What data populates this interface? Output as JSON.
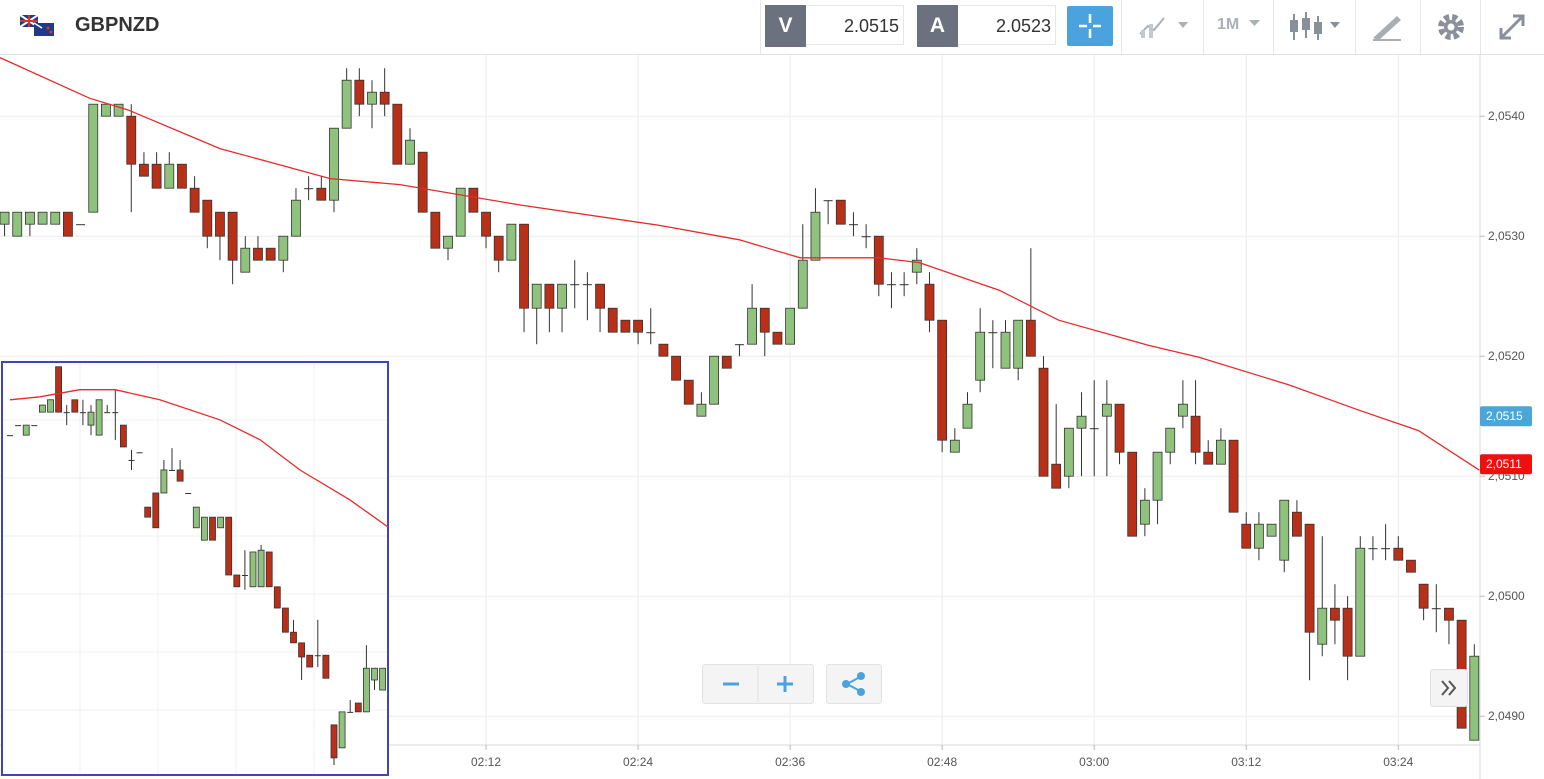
{
  "header": {
    "symbol": "GBPNZD",
    "sell": {
      "label": "V",
      "price": "2.0515"
    },
    "buy": {
      "label": "A",
      "price": "2.0523"
    },
    "timeframe": "1M"
  },
  "chart_data": [
    {
      "type": "candlestick",
      "up_color": "#8fc27c",
      "down_color": "#b93019",
      "grid": true,
      "xlim": [
        93.64,
        210.45
      ],
      "xticks": [
        {
          "value": 132,
          "label": "02:12"
        },
        {
          "value": 144,
          "label": "02:24"
        },
        {
          "value": 156,
          "label": "02:36"
        },
        {
          "value": 168,
          "label": "02:48"
        },
        {
          "value": 180,
          "label": "03:00"
        },
        {
          "value": 192,
          "label": "03:12"
        },
        {
          "value": 204,
          "label": "03:24"
        }
      ],
      "ylim": [
        2.04876,
        2.05451
      ],
      "yticks": [
        {
          "value": 2.049,
          "label": "2,0490"
        },
        {
          "value": 2.05,
          "label": "2,0500"
        },
        {
          "value": 2.051,
          "label": "2,0510"
        },
        {
          "value": 2.052,
          "label": "2,0520"
        },
        {
          "value": 2.053,
          "label": "2,0530"
        },
        {
          "value": 2.054,
          "label": "2,0540"
        }
      ],
      "x": [
        94,
        95,
        96,
        97,
        98,
        99,
        100,
        101,
        102,
        103,
        104,
        105,
        106,
        107,
        108,
        109,
        110,
        111,
        112,
        113,
        114,
        115,
        116,
        117,
        118,
        119,
        120,
        121,
        122,
        123,
        124,
        125,
        126,
        127,
        128,
        129,
        130,
        131,
        132,
        133,
        134,
        135,
        136,
        137,
        138,
        139,
        140,
        141,
        142,
        143,
        144,
        145,
        146,
        147,
        148,
        149,
        150,
        151,
        152,
        153,
        154,
        155,
        156,
        157,
        158,
        159,
        160,
        161,
        162,
        163,
        164,
        165,
        166,
        167,
        168,
        169,
        170,
        171,
        172,
        173,
        174,
        175,
        176,
        177,
        178,
        179,
        180,
        181,
        182,
        183,
        184,
        185,
        186,
        187,
        188,
        189,
        190,
        191,
        192,
        193,
        194,
        195,
        196,
        197,
        198,
        199,
        200,
        201,
        202,
        203,
        204,
        205,
        206,
        207,
        208,
        209,
        210
      ],
      "open": [
        2.0531,
        2.053,
        2.0531,
        2.0531,
        2.0531,
        2.0532,
        2.0531,
        2.0532,
        2.054,
        2.054,
        2.054,
        2.0536,
        2.0536,
        2.0534,
        2.0536,
        2.0534,
        2.0533,
        2.0532,
        2.0532,
        2.0527,
        2.0529,
        2.0529,
        2.0528,
        2.053,
        2.0534,
        2.0534,
        2.0533,
        2.0539,
        2.0543,
        2.0541,
        2.0542,
        2.0541,
        2.0536,
        2.0537,
        2.0532,
        2.0529,
        2.053,
        2.0534,
        2.0532,
        2.053,
        2.0528,
        2.0531,
        2.0524,
        2.0526,
        2.0524,
        2.0526,
        2.0526,
        2.0526,
        2.0524,
        2.0523,
        2.0523,
        2.0522,
        2.0521,
        2.052,
        2.0518,
        2.0515,
        2.0516,
        2.052,
        2.0521,
        2.0521,
        2.0524,
        2.0522,
        2.0521,
        2.0524,
        2.0528,
        2.0533,
        2.0533,
        2.0531,
        2.053,
        2.053,
        2.0526,
        2.0526,
        2.0527,
        2.0526,
        2.0523,
        2.0512,
        2.0514,
        2.0518,
        2.0522,
        2.0519,
        2.0519,
        2.0523,
        2.0519,
        2.0511,
        2.051,
        2.0514,
        2.0514,
        2.0515,
        2.0516,
        2.0512,
        2.0506,
        2.0508,
        2.0512,
        2.0515,
        2.0515,
        2.0512,
        2.0511,
        2.0513,
        2.0506,
        2.0504,
        2.0505,
        2.0503,
        2.0507,
        2.0506,
        2.0496,
        2.0499,
        2.0499,
        2.0495,
        2.0504,
        2.0504,
        2.0504,
        2.0503,
        2.0501,
        2.0499,
        2.0499,
        2.0498,
        2.0488
      ],
      "high": [
        2.0532,
        2.0532,
        2.0532,
        2.0532,
        2.0532,
        2.0532,
        2.0531,
        2.0541,
        2.0541,
        2.0541,
        2.0541,
        2.0537,
        2.0537,
        2.0537,
        2.0536,
        2.0535,
        2.0533,
        2.0532,
        2.0532,
        2.053,
        2.053,
        2.0529,
        2.053,
        2.0534,
        2.0535,
        2.0535,
        2.0539,
        2.0544,
        2.0544,
        2.0543,
        2.0544,
        2.0541,
        2.0539,
        2.0537,
        2.0532,
        2.053,
        2.0534,
        2.0534,
        2.0532,
        2.053,
        2.0531,
        2.0531,
        2.0526,
        2.0526,
        2.0526,
        2.0528,
        2.0527,
        2.0526,
        2.0524,
        2.0523,
        2.0523,
        2.0524,
        2.0521,
        2.052,
        2.0518,
        2.0517,
        2.052,
        2.052,
        2.0521,
        2.0526,
        2.0524,
        2.0522,
        2.0524,
        2.0531,
        2.0534,
        2.0533,
        2.0533,
        2.0532,
        2.0531,
        2.053,
        2.0527,
        2.0527,
        2.0529,
        2.0527,
        2.0523,
        2.0514,
        2.0517,
        2.0524,
        2.0523,
        2.0523,
        2.0523,
        2.0529,
        2.052,
        2.0516,
        2.0514,
        2.0517,
        2.0518,
        2.0518,
        2.0516,
        2.0512,
        2.0509,
        2.0512,
        2.0514,
        2.0518,
        2.0518,
        2.0513,
        2.0514,
        2.0513,
        2.0507,
        2.0507,
        2.0506,
        2.0508,
        2.0508,
        2.0506,
        2.0505,
        2.0501,
        2.05,
        2.0505,
        2.0505,
        2.0506,
        2.0505,
        2.0503,
        2.0501,
        2.0501,
        2.0499,
        2.0498,
        2.0496
      ],
      "low": [
        2.053,
        2.053,
        2.053,
        2.0531,
        2.0531,
        2.053,
        2.0531,
        2.0532,
        2.054,
        2.054,
        2.0532,
        2.0535,
        2.0534,
        2.0534,
        2.0534,
        2.0532,
        2.0529,
        2.0528,
        2.0526,
        2.0527,
        2.0528,
        2.0528,
        2.0527,
        2.053,
        2.0533,
        2.0533,
        2.0532,
        2.0539,
        2.054,
        2.0539,
        2.054,
        2.0536,
        2.0536,
        2.0532,
        2.0529,
        2.0528,
        2.053,
        2.0532,
        2.0529,
        2.0527,
        2.0528,
        2.0522,
        2.0521,
        2.0522,
        2.0522,
        2.0524,
        2.0523,
        2.0522,
        2.0522,
        2.0522,
        2.0521,
        2.0521,
        2.052,
        2.0518,
        2.0516,
        2.0515,
        2.0516,
        2.0519,
        2.052,
        2.0521,
        2.052,
        2.0521,
        2.0521,
        2.0524,
        2.0528,
        2.0531,
        2.0531,
        2.053,
        2.0529,
        2.0525,
        2.0524,
        2.0525,
        2.0526,
        2.0522,
        2.0512,
        2.0512,
        2.0514,
        2.0517,
        2.0519,
        2.0519,
        2.0518,
        2.052,
        2.051,
        2.0509,
        2.0509,
        2.051,
        2.051,
        2.051,
        2.0511,
        2.0505,
        2.0505,
        2.0506,
        2.0511,
        2.0514,
        2.0511,
        2.0511,
        2.0511,
        2.0507,
        2.0504,
        2.0503,
        2.0505,
        2.0502,
        2.0505,
        2.0493,
        2.0495,
        2.0496,
        2.0493,
        2.0495,
        2.0503,
        2.0503,
        2.0503,
        2.0502,
        2.0498,
        2.0497,
        2.0496,
        2.0489,
        2.0488
      ],
      "close": [
        2.0532,
        2.0532,
        2.0532,
        2.0532,
        2.0532,
        2.053,
        2.0531,
        2.0541,
        2.0541,
        2.0541,
        2.0536,
        2.0535,
        2.0534,
        2.0536,
        2.0534,
        2.0532,
        2.053,
        2.053,
        2.0528,
        2.0529,
        2.0528,
        2.0528,
        2.053,
        2.0533,
        2.0534,
        2.0533,
        2.0539,
        2.0543,
        2.0541,
        2.0542,
        2.0541,
        2.0536,
        2.0538,
        2.0532,
        2.0529,
        2.053,
        2.0534,
        2.0532,
        2.053,
        2.0528,
        2.0531,
        2.0524,
        2.0526,
        2.0524,
        2.0526,
        2.0526,
        2.0526,
        2.0524,
        2.0522,
        2.0522,
        2.0522,
        2.0522,
        2.052,
        2.0518,
        2.0516,
        2.0516,
        2.052,
        2.0519,
        2.0521,
        2.0524,
        2.0522,
        2.0521,
        2.0524,
        2.0528,
        2.0532,
        2.0533,
        2.0531,
        2.0531,
        2.053,
        2.0526,
        2.0526,
        2.0526,
        2.0528,
        2.0523,
        2.0513,
        2.0513,
        2.0516,
        2.0522,
        2.0522,
        2.0522,
        2.0523,
        2.052,
        2.051,
        2.0509,
        2.0514,
        2.0515,
        2.0514,
        2.0516,
        2.0512,
        2.0505,
        2.0508,
        2.0512,
        2.0514,
        2.0516,
        2.0512,
        2.0511,
        2.0513,
        2.0507,
        2.0504,
        2.0506,
        2.0506,
        2.0508,
        2.0505,
        2.0497,
        2.0499,
        2.0498,
        2.0495,
        2.0504,
        2.0504,
        2.0504,
        2.0503,
        2.0502,
        2.0499,
        2.0499,
        2.0498,
        2.0489,
        2.0495
      ],
      "moving_average": {
        "color": "#e8292b",
        "x": [
          93.6,
          100.7,
          103.8,
          111,
          119.7,
          125.2,
          134.7,
          145.7,
          152,
          156.8,
          163,
          166.2,
          172.5,
          177.2,
          184.3,
          188.3,
          195.4,
          200.9,
          205.6,
          210.4
        ],
        "values": [
          2.05449,
          2.05415,
          2.05405,
          2.05373,
          2.05348,
          2.05343,
          2.05326,
          2.05309,
          2.05297,
          2.05282,
          2.05282,
          2.05278,
          2.05255,
          2.0523,
          2.05209,
          2.05199,
          2.05176,
          2.05155,
          2.05138,
          2.05105
        ]
      },
      "price_tags": [
        {
          "value": 2.0515,
          "label": "2,0515",
          "color": "#4aa6d9"
        },
        {
          "value": 2.0511,
          "label": "2,0511",
          "color": "#f00f0f"
        }
      ]
    },
    {
      "type": "candlestick",
      "up_color": "#8fc27c",
      "down_color": "#b93019",
      "border_color": "#4045b8",
      "ylim": [
        2.0475,
        2.0545
      ],
      "open": [
        2.05326,
        2.05343,
        2.05326,
        2.05343,
        2.05365,
        2.05365,
        2.05442,
        2.05365,
        2.05386,
        2.05365,
        2.05343,
        2.05326,
        2.05365,
        2.05365,
        2.05343,
        2.05284,
        2.05297,
        2.05204,
        2.05228,
        2.05228,
        2.05267,
        2.05267,
        2.05228,
        2.05169,
        2.05148,
        2.05187,
        2.05169,
        2.05187,
        2.05089,
        2.05089,
        2.05069,
        2.05069,
        2.05128,
        2.05069,
        2.05033,
        2.04992,
        2.04974,
        2.04953,
        2.04953,
        2.04953,
        2.04835,
        2.04796,
        2.04857,
        2.04872,
        2.04857,
        2.04911,
        2.04894
      ],
      "high": [
        2.05326,
        2.05343,
        2.05343,
        2.05343,
        2.05377,
        2.05386,
        2.05442,
        2.05377,
        2.05386,
        2.05386,
        2.05377,
        2.05386,
        2.05377,
        2.05403,
        2.05343,
        2.05301,
        2.05297,
        2.05204,
        2.05228,
        2.05284,
        2.05304,
        2.05284,
        2.05228,
        2.05204,
        2.05187,
        2.05187,
        2.05187,
        2.05187,
        2.05089,
        2.05131,
        2.05128,
        2.0514,
        2.05128,
        2.05069,
        2.05033,
        2.05013,
        2.04974,
        2.04953,
        2.05013,
        2.04953,
        2.04835,
        2.04857,
        2.04877,
        2.04872,
        2.0497,
        2.04931,
        2.04931
      ],
      "low": [
        2.05326,
        2.05343,
        2.05326,
        2.05343,
        2.05365,
        2.05365,
        2.05365,
        2.05343,
        2.05365,
        2.05343,
        2.05326,
        2.05326,
        2.05365,
        2.05318,
        2.05306,
        2.05267,
        2.05297,
        2.05187,
        2.05169,
        2.05228,
        2.05267,
        2.05248,
        2.05228,
        2.05169,
        2.05148,
        2.05148,
        2.05169,
        2.05089,
        2.05069,
        2.05064,
        2.05069,
        2.05069,
        2.05069,
        2.05033,
        2.04992,
        2.04974,
        2.04911,
        2.04933,
        2.04933,
        2.04914,
        2.04767,
        2.04796,
        2.04857,
        2.04857,
        2.04857,
        2.04894,
        2.04894
      ],
      "close": [
        2.05326,
        2.05343,
        2.05343,
        2.05343,
        2.05377,
        2.05386,
        2.05365,
        2.05365,
        2.05365,
        2.05365,
        2.05365,
        2.05386,
        2.05365,
        2.05365,
        2.05306,
        2.05284,
        2.05297,
        2.05187,
        2.05169,
        2.05267,
        2.05267,
        2.05248,
        2.05228,
        2.05204,
        2.05187,
        2.05148,
        2.05187,
        2.05089,
        2.05069,
        2.05089,
        2.05128,
        2.05131,
        2.05069,
        2.05033,
        2.04992,
        2.04974,
        2.0495,
        2.04933,
        2.04953,
        2.04914,
        2.04779,
        2.04857,
        2.04857,
        2.04857,
        2.04931,
        2.04931,
        2.04931
      ],
      "moving_average": {
        "color": "#e8292b",
        "x": [
          0,
          3.7,
          8.6,
          13,
          18.5,
          25.9,
          30.9,
          35.8,
          42,
          46.7
        ],
        "values": [
          2.05386,
          2.05391,
          2.05403,
          2.05403,
          2.05386,
          2.05352,
          2.05318,
          2.05267,
          2.05216,
          2.0517
        ]
      }
    }
  ]
}
